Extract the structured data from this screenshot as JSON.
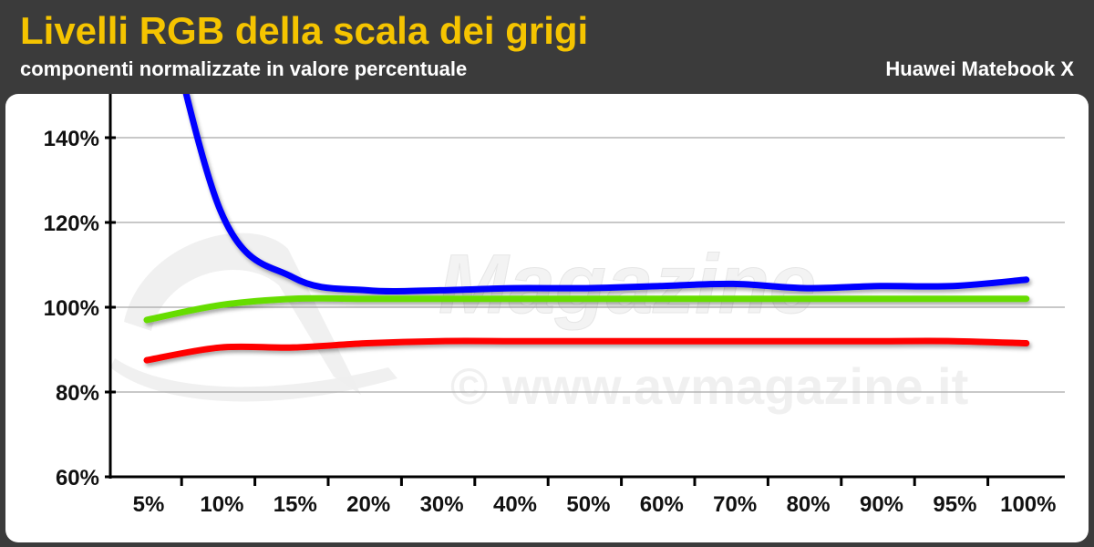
{
  "header": {
    "title": "Livelli RGB della scala dei grigi",
    "subtitle": "componenti normalizzate in valore percentuale",
    "device": "Huawei Matebook X"
  },
  "watermark": {
    "brand": "Magazine",
    "url": "© www.avmagazine.it"
  },
  "colors": {
    "title": "#f5c400",
    "header_bg": "#3b3b3b",
    "red": "#ff0000",
    "green": "#66dd00",
    "blue": "#0000ff"
  },
  "chart_data": {
    "type": "line",
    "title": "Livelli RGB della scala dei grigi",
    "subtitle": "componenti normalizzate in valore percentuale",
    "categories": [
      "5%",
      "10%",
      "15%",
      "20%",
      "30%",
      "40%",
      "50%",
      "60%",
      "70%",
      "80%",
      "90%",
      "95%",
      "100%"
    ],
    "ylim": [
      60,
      150
    ],
    "yticks": [
      60,
      80,
      100,
      120,
      140
    ],
    "ytick_labels": [
      "60%",
      "80%",
      "100%",
      "120%",
      "140%"
    ],
    "grid": true,
    "series": [
      {
        "key": "blue",
        "color": "#0000ff",
        "values": [
          190,
          123,
          107,
          104,
          104,
          104.5,
          104.5,
          105,
          105.5,
          104.5,
          105,
          105,
          106.5
        ]
      },
      {
        "key": "green",
        "color": "#66dd00",
        "values": [
          97,
          100.5,
          102,
          102,
          102,
          102,
          102,
          102,
          102,
          102,
          102,
          102,
          102
        ]
      },
      {
        "key": "red",
        "color": "#ff0000",
        "values": [
          87.5,
          90.5,
          90.5,
          91.5,
          92,
          92,
          92,
          92,
          92,
          92,
          92,
          92,
          91.5
        ]
      }
    ]
  }
}
